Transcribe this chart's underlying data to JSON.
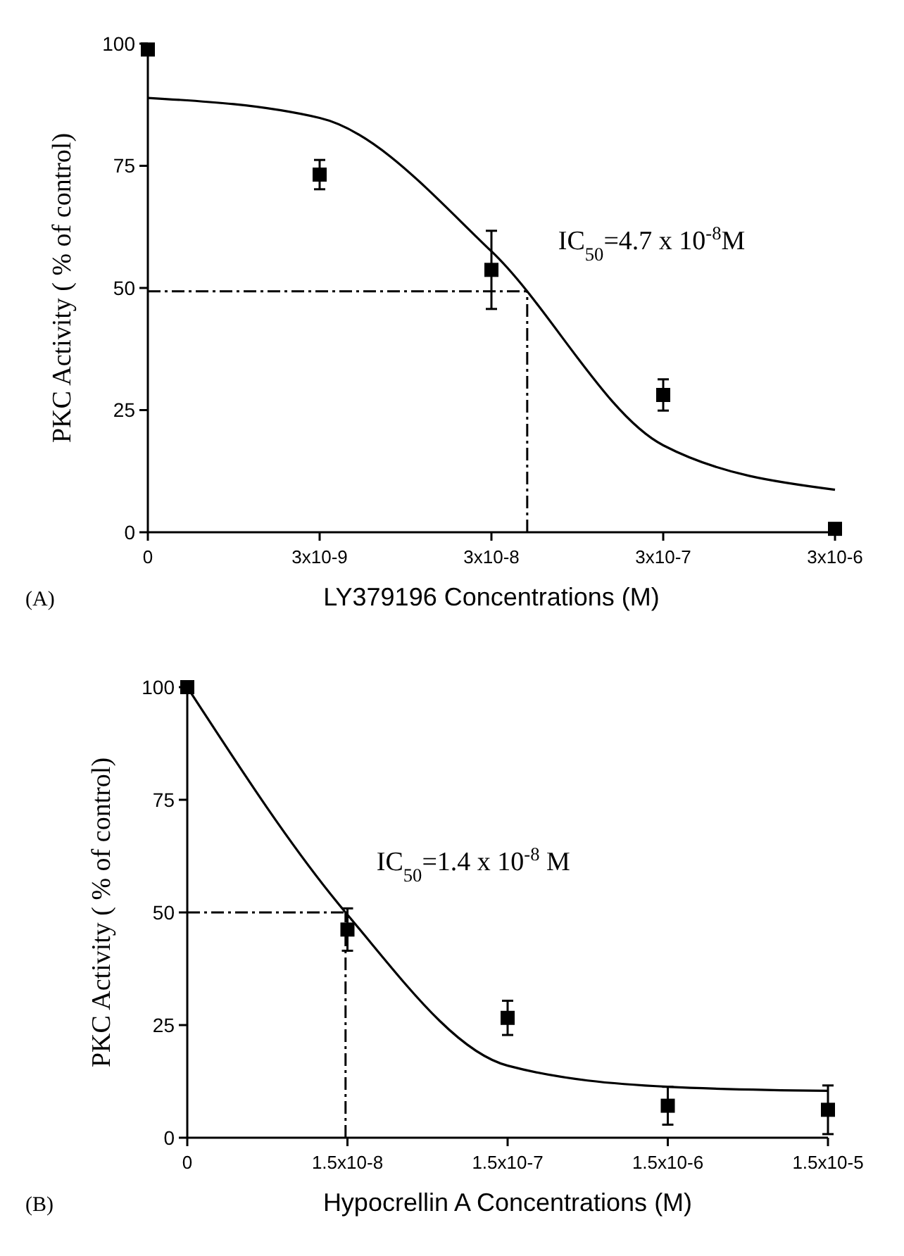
{
  "chart_data": [
    {
      "type": "scatter",
      "ylabel": "PKC Activity ( % of control)",
      "xlabel": "LY379196 Concentrations (M)",
      "categories": [
        "0",
        "3x10-9",
        "3x10-8",
        "3x10-7",
        "3x10-6"
      ],
      "ylim": [
        0,
        100
      ],
      "yticks": [
        0,
        25,
        50,
        75,
        100
      ],
      "marker": "square",
      "series": [
        {
          "color": "#000000",
          "values": [
            98.8,
            73.2,
            53.7,
            28.1,
            0.7
          ],
          "errors": [
            null,
            3,
            8,
            3.2,
            null
          ]
        },
        {
          "type": "line",
          "color": "#000000",
          "marker": "none",
          "values": [
            88.9,
            84.8,
            57.5,
            17.8,
            8.7
          ]
        }
      ],
      "ref_lines": [
        {
          "axis": "y",
          "value": 49.3,
          "color": "#000000",
          "line_style": "dashed"
        }
      ],
      "annotations": [
        "IC$_{50}$=4.7 x 10$^{-8}$M",
        "(A)"
      ]
    },
    {
      "type": "scatter",
      "ylabel": "PKC Activity ( % of control)",
      "xlabel": "Hypocrellin A Concentrations (M)",
      "categories": [
        "0",
        "1.5x10-8",
        "1.5x10-7",
        "1.5x10-6",
        "1.5x10-5"
      ],
      "ylim": [
        0,
        100
      ],
      "yticks": [
        0,
        25,
        50,
        75,
        100
      ],
      "marker": "square",
      "series": [
        {
          "color": "#000000",
          "values": [
            100,
            46.2,
            26.6,
            7.1,
            6.2
          ],
          "errors": [
            null,
            4.7,
            3.8,
            4.2,
            5.4
          ]
        },
        {
          "type": "line",
          "color": "#000000",
          "marker": "none",
          "values": [
            100,
            49.5,
            16,
            11.3,
            10.4
          ]
        }
      ],
      "ref_lines": [
        {
          "axis": "y",
          "value": 50,
          "color": "#000000",
          "line_style": "dashed"
        }
      ],
      "annotations": [
        "IC$_{50}$=1.4 x 10$^{-8}$ M",
        "(B)"
      ]
    }
  ]
}
